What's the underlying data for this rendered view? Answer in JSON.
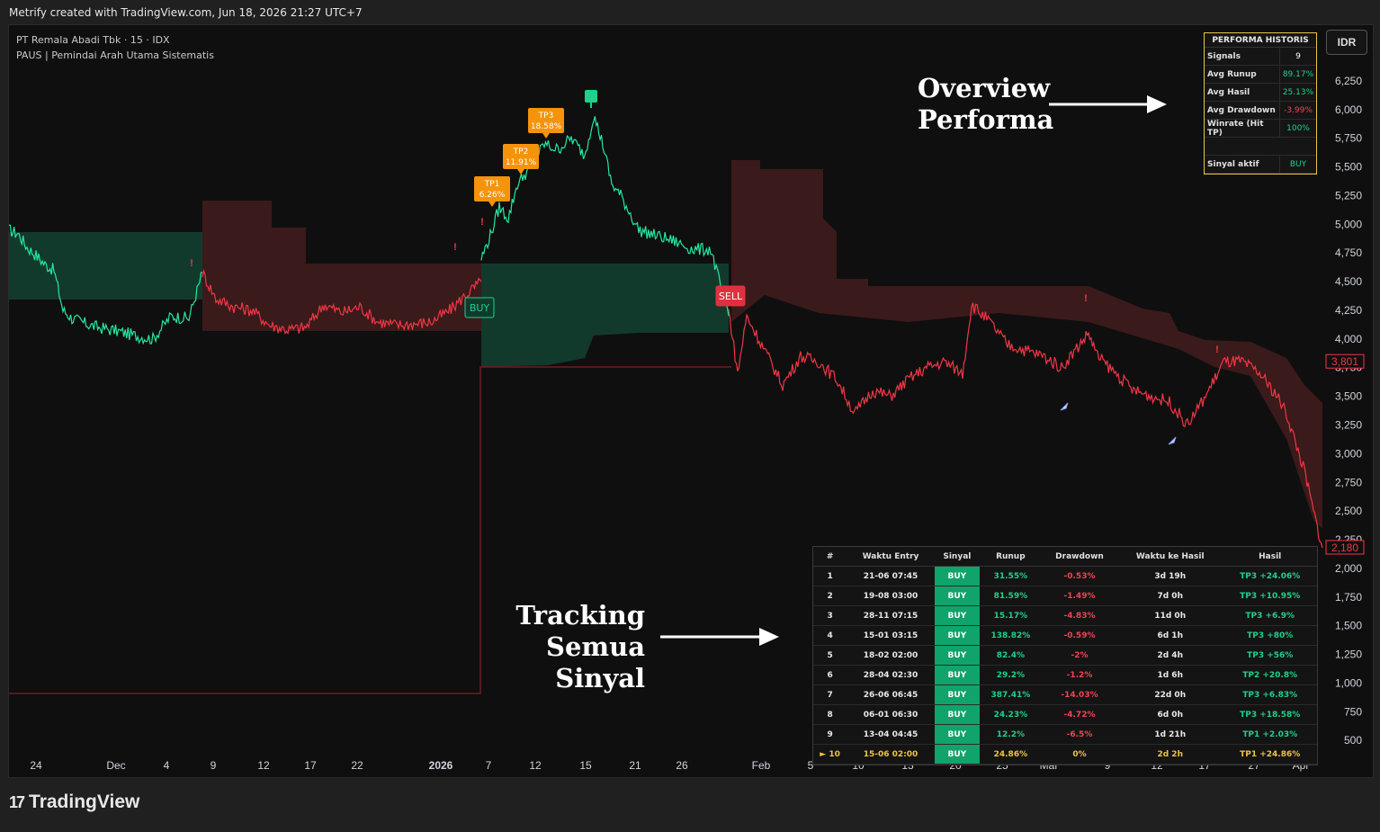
{
  "header": {
    "attribution": "Metrify created with TradingView.com, Jun 18, 2026 21:27 UTC+7"
  },
  "legend": {
    "symbol": "PT Remala Abadi Tbk · 15 · IDX",
    "indicator": "PAUS | Pemindai Arah Utama Sistematis"
  },
  "currency_button": "IDR",
  "performance": {
    "title": "PERFORMA HISTORIS",
    "rows": [
      {
        "label": "Signals",
        "value": "9",
        "color": "#ffffff"
      },
      {
        "label": "Avg Runup",
        "value": "89.17%",
        "color": "#20d08c"
      },
      {
        "label": "Avg Hasil",
        "value": "25.13%",
        "color": "#20d08c"
      },
      {
        "label": "Avg Drawdown",
        "value": "-3.99%",
        "color": "#ef4454"
      },
      {
        "label": "Winrate (Hit TP)",
        "value": "100%",
        "color": "#20d08c"
      }
    ],
    "active_label": "Sinyal aktif",
    "active_value": "BUY",
    "active_color": "#20d08c"
  },
  "tracker": {
    "headers": [
      "#",
      "Waktu Entry",
      "Sinyal",
      "Runup",
      "Drawdown",
      "Waktu ke Hasil",
      "Hasil"
    ],
    "rows": [
      {
        "no": "1",
        "entry": "21-06 07:45",
        "signal": "BUY",
        "runup": "31.55%",
        "drawdown": "-0.53%",
        "time": "3d 19h",
        "result": "TP3 +24.06%"
      },
      {
        "no": "2",
        "entry": "19-08 03:00",
        "signal": "BUY",
        "runup": "81.59%",
        "drawdown": "-1.49%",
        "time": "7d 0h",
        "result": "TP3 +10.95%"
      },
      {
        "no": "3",
        "entry": "28-11 07:15",
        "signal": "BUY",
        "runup": "15.17%",
        "drawdown": "-4.83%",
        "time": "11d 0h",
        "result": "TP3 +6.9%"
      },
      {
        "no": "4",
        "entry": "15-01 03:15",
        "signal": "BUY",
        "runup": "138.82%",
        "drawdown": "-0.59%",
        "time": "6d 1h",
        "result": "TP3 +80%"
      },
      {
        "no": "5",
        "entry": "18-02 02:00",
        "signal": "BUY",
        "runup": "82.4%",
        "drawdown": "-2%",
        "time": "2d 4h",
        "result": "TP3 +56%"
      },
      {
        "no": "6",
        "entry": "28-04 02:30",
        "signal": "BUY",
        "runup": "29.2%",
        "drawdown": "-1.2%",
        "time": "1d 6h",
        "result": "TP2 +20.8%"
      },
      {
        "no": "7",
        "entry": "26-06 06:45",
        "signal": "BUY",
        "runup": "387.41%",
        "drawdown": "-14.03%",
        "time": "22d 0h",
        "result": "TP3 +6.83%"
      },
      {
        "no": "8",
        "entry": "06-01 06:30",
        "signal": "BUY",
        "runup": "24.23%",
        "drawdown": "-4.72%",
        "time": "6d 0h",
        "result": "TP3 +18.58%"
      },
      {
        "no": "9",
        "entry": "13-04 04:45",
        "signal": "BUY",
        "runup": "12.2%",
        "drawdown": "-6.5%",
        "time": "1d 21h",
        "result": "TP1 +2.03%"
      },
      {
        "no": "► 10",
        "entry": "15-06 02:00",
        "signal": "BUY",
        "runup": "24.86%",
        "drawdown": "0%",
        "time": "2d 2h",
        "result": "TP1 +24.86%"
      }
    ]
  },
  "annotations": {
    "overview_line1": "Overview",
    "overview_line2": "Performa",
    "tracking_line1": "Tracking Semua",
    "tracking_line2": "Sinyal"
  },
  "footer": {
    "logo_mark": "17",
    "logo_text": "TradingView"
  },
  "chart_data": {
    "type": "line",
    "colors": {
      "up": "#26e8a0",
      "down": "#f23645",
      "up_zone": "#123a2c",
      "down_zone": "#3a1a1a",
      "price_label": "#f23645"
    },
    "y_ticks": [
      6250,
      6000,
      5750,
      5500,
      5250,
      5000,
      4750,
      4500,
      4250,
      4000,
      3750,
      3500,
      3250,
      3000,
      2750,
      2500,
      2250,
      2000,
      1750,
      1500,
      1250,
      1000,
      750,
      500
    ],
    "ylim": [
      400,
      6500
    ],
    "x_ticks": [
      "24",
      "Dec",
      "4",
      "9",
      "12",
      "17",
      "22",
      "2026",
      "7",
      "12",
      "15",
      "21",
      "26",
      "Feb",
      "5",
      "10",
      "13",
      "20",
      "25",
      "Mar",
      "9",
      "12",
      "17",
      "27",
      "Apr"
    ],
    "price_labels": [
      "3,801",
      "2,180"
    ],
    "series": [
      {
        "segment": "bull-1",
        "color": "up",
        "x": [
          0,
          10,
          20,
          30,
          40,
          50,
          60,
          70,
          80,
          90,
          100,
          120,
          140,
          160,
          180,
          200,
          215
        ],
        "values": [
          4950,
          4920,
          4800,
          4730,
          4650,
          4600,
          4250,
          4180,
          4150,
          4120,
          4100,
          4070,
          4030,
          4000,
          4200,
          4180,
          4580
        ]
      },
      {
        "segment": "bear-1",
        "color": "down",
        "x": [
          215,
          230,
          250,
          270,
          290,
          310,
          330,
          350,
          370,
          390,
          410,
          430,
          450,
          470,
          490,
          510,
          525
        ],
        "values": [
          4580,
          4350,
          4280,
          4250,
          4120,
          4080,
          4100,
          4300,
          4230,
          4280,
          4150,
          4120,
          4130,
          4150,
          4250,
          4400,
          4500
        ]
      },
      {
        "segment": "bull-2",
        "color": "up",
        "x": [
          525,
          535,
          545,
          555,
          565,
          580,
          595,
          610,
          625,
          640,
          650,
          660,
          670,
          680,
          700,
          720,
          740,
          760,
          780,
          800
        ],
        "values": [
          4700,
          4900,
          5150,
          5050,
          5350,
          5500,
          5700,
          5650,
          5750,
          5600,
          5950,
          5700,
          5350,
          5250,
          4950,
          4900,
          4850,
          4780,
          4780,
          4200
        ]
      },
      {
        "segment": "bear-2",
        "color": "down",
        "x": [
          800,
          810,
          820,
          840,
          860,
          880,
          900,
          920,
          940,
          960,
          980,
          1000,
          1020,
          1040,
          1060,
          1070,
          1090,
          1110,
          1130,
          1150,
          1170,
          1190,
          1200,
          1210,
          1230,
          1250,
          1270,
          1290,
          1310,
          1330,
          1350,
          1370,
          1390,
          1410,
          1420,
          1430,
          1440,
          1450,
          1460
        ],
        "values": [
          4250,
          3700,
          4200,
          3900,
          3600,
          3850,
          3800,
          3650,
          3350,
          3550,
          3500,
          3650,
          3750,
          3800,
          3700,
          4300,
          4150,
          3950,
          3900,
          3850,
          3750,
          3950,
          4050,
          3850,
          3700,
          3550,
          3500,
          3450,
          3250,
          3500,
          3800,
          3800,
          3700,
          3500,
          3350,
          3100,
          2850,
          2500,
          2180
        ]
      }
    ],
    "signals": [
      {
        "label": "BUY",
        "x": 523,
        "price": 4250
      },
      {
        "label": "SELL",
        "x": 802,
        "price": 4500
      }
    ],
    "take_profits": [
      {
        "label": "TP1",
        "value": "6.26%",
        "x": 537,
        "price": 5350
      },
      {
        "label": "TP2",
        "value": "11.91%",
        "x": 569,
        "price": 5650
      },
      {
        "label": "TP3",
        "value": "18.58%",
        "x": 597,
        "price": 5950
      }
    ]
  }
}
